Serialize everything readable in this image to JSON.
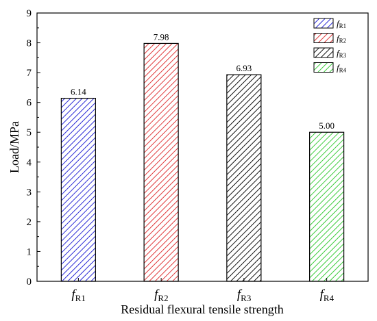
{
  "chart_data": {
    "type": "bar",
    "categories": [
      {
        "main": "f",
        "sub": "R1"
      },
      {
        "main": "f",
        "sub": "R2"
      },
      {
        "main": "f",
        "sub": "R3"
      },
      {
        "main": "f",
        "sub": "R4"
      }
    ],
    "values": [
      6.14,
      7.98,
      6.93,
      5.0
    ],
    "data_labels": [
      "6.14",
      "7.98",
      "6.93",
      "5.00"
    ],
    "xlabel": "Residual flexural tensile strength",
    "ylabel": "Load/MPa",
    "ylim": [
      0,
      9
    ],
    "yticks": [
      "0",
      "1",
      "2",
      "3",
      "4",
      "5",
      "6",
      "7",
      "8",
      "9"
    ],
    "grid": false,
    "legend_position": "top-right",
    "legend": [
      {
        "main": "f",
        "sub": "R1"
      },
      {
        "main": "f",
        "sub": "R2"
      },
      {
        "main": "f",
        "sub": "R3"
      },
      {
        "main": "f",
        "sub": "R4"
      }
    ],
    "colors": [
      "#2b2bd6",
      "#e0393b",
      "#111111",
      "#3ccc3c"
    ],
    "hatch": "diagonal"
  }
}
